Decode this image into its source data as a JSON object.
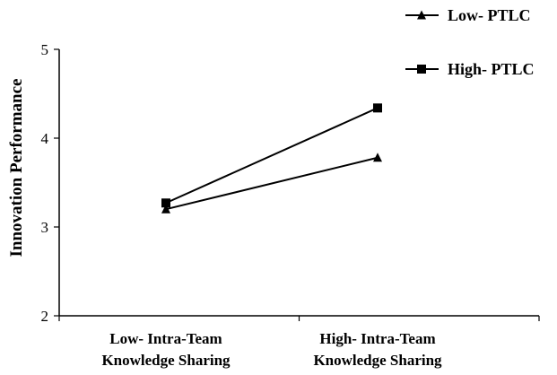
{
  "chart_data": {
    "type": "line",
    "title": "",
    "xlabel": "",
    "ylabel": "Innovation Performance",
    "categories": [
      [
        "Low- Intra-Team",
        "Knowledge Sharing"
      ],
      [
        "High- Intra-Team",
        "Knowledge Sharing"
      ]
    ],
    "yticks": [
      2,
      3,
      4,
      5
    ],
    "ylim": [
      2,
      5
    ],
    "grid": false,
    "legend_position": "top-right",
    "series": [
      {
        "name": "Low- PTLC",
        "marker": "triangle",
        "values": [
          3.2,
          3.78
        ]
      },
      {
        "name": "High- PTLC",
        "marker": "square",
        "values": [
          3.27,
          4.34
        ]
      }
    ]
  }
}
